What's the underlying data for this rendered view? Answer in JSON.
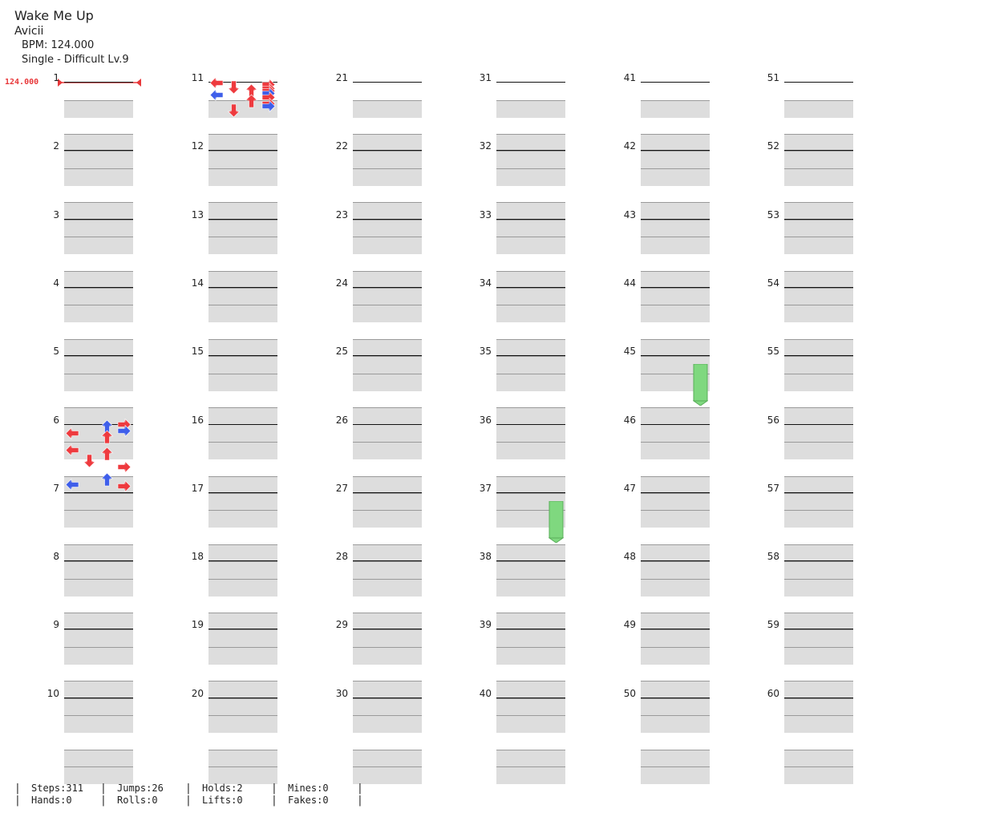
{
  "song": {
    "title": "Wake Me Up",
    "artist": "Avicii",
    "bpm_label": "BPM: 124.000",
    "difficulty_label": "Single - Difficult Lv.9"
  },
  "bpm_change": {
    "value_label": "124.000",
    "measure": 1
  },
  "colors": {
    "red_note": "#ee3b3f",
    "blue_note": "#3f5fea",
    "hold_green": "#7fd87f",
    "bpm_red": "#e8383a",
    "band": "#dddddd"
  },
  "layout_info": {
    "measures_per_column": 10,
    "total_measures": 60
  },
  "measures": [
    {
      "n": "1",
      "notes": []
    },
    {
      "n": "2",
      "notes": []
    },
    {
      "n": "3",
      "notes": []
    },
    {
      "n": "4",
      "notes": []
    },
    {
      "n": "5",
      "notes": []
    },
    {
      "n": "6",
      "notes": [
        [
          0,
          "R",
          8
        ],
        [
          1,
          "U",
          16
        ],
        [
          3,
          "R",
          16
        ],
        [
          4,
          "L",
          8
        ],
        [
          6,
          "U",
          8
        ],
        [
          12,
          "L",
          8
        ],
        [
          14,
          "U",
          8
        ],
        [
          17,
          "D",
          8
        ],
        [
          20,
          "R",
          8
        ],
        [
          26,
          "U",
          16
        ],
        [
          28,
          "L",
          16
        ],
        [
          29,
          "R",
          8
        ]
      ]
    },
    {
      "n": "7",
      "notes": []
    },
    {
      "n": "8",
      "notes": []
    },
    {
      "n": "9",
      "notes": []
    },
    {
      "n": "10",
      "notes": []
    },
    {
      "n": "11",
      "notes": [
        [
          0,
          "L",
          8
        ],
        [
          1,
          "R",
          8
        ],
        [
          2,
          "D",
          8
        ],
        [
          3,
          "R",
          8
        ],
        [
          4,
          "U",
          8
        ],
        [
          4,
          "R",
          8
        ],
        [
          5,
          "R",
          16
        ],
        [
          6,
          "L",
          16
        ],
        [
          7,
          "R",
          8
        ],
        [
          9,
          "U",
          8
        ],
        [
          10,
          "R",
          8
        ],
        [
          11,
          "R",
          16
        ],
        [
          13,
          "D",
          8
        ]
      ]
    },
    {
      "n": "12",
      "notes": []
    },
    {
      "n": "13",
      "notes": []
    },
    {
      "n": "14",
      "notes": []
    },
    {
      "n": "15",
      "notes": []
    },
    {
      "n": "16",
      "notes": []
    },
    {
      "n": "17",
      "notes": []
    },
    {
      "n": "18",
      "notes": []
    },
    {
      "n": "19",
      "notes": []
    },
    {
      "n": "20",
      "notes": []
    }
  ],
  "stats": {
    "steps": "Steps:311",
    "hands": "Hands:0",
    "jumps": "Jumps:26",
    "rolls": "Rolls:0",
    "holds": "Holds:2",
    "lifts": "Lifts:0",
    "mines": "Mines:0",
    "fakes": "Fakes:0"
  }
}
